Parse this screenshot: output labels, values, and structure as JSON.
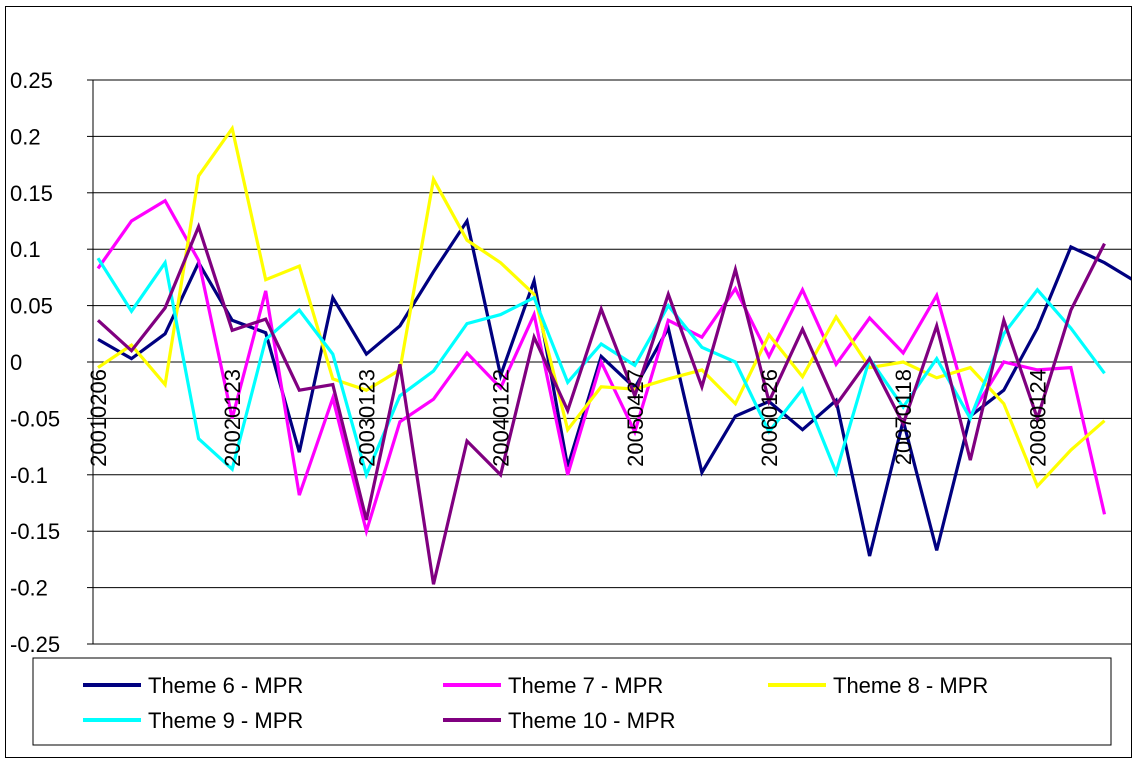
{
  "chart_data": {
    "type": "line",
    "title": "",
    "xlabel": "",
    "ylabel": "",
    "ylim": [
      -0.25,
      0.25
    ],
    "y_ticks": [
      "0.25",
      "0.2",
      "0.15",
      "0.1",
      "0.05",
      "0",
      "-0.05",
      "-0.1",
      "-0.15",
      "-0.2",
      "-0.25"
    ],
    "x_tick_labels": [
      {
        "label": "20010206",
        "index": 0
      },
      {
        "label": "20020123",
        "index": 4
      },
      {
        "label": "20030123",
        "index": 8
      },
      {
        "label": "20040122",
        "index": 12
      },
      {
        "label": "20050427",
        "index": 16
      },
      {
        "label": "20060126",
        "index": 20
      },
      {
        "label": "20070118",
        "index": 24
      },
      {
        "label": "20080124",
        "index": 28
      }
    ],
    "grid": "horizontal",
    "legend_placement": "bottom",
    "series": [
      {
        "name": "Theme 6 - MPR",
        "color": "#000080",
        "values": [
          0.02,
          0.003,
          0.025,
          0.088,
          0.037,
          0.026,
          -0.08,
          0.057,
          0.007,
          0.032,
          0.08,
          0.125,
          -0.012,
          0.072,
          -0.093,
          0.005,
          -0.023,
          0.03,
          -0.098,
          -0.048,
          -0.035,
          -0.06,
          -0.034,
          -0.172,
          -0.052,
          -0.167,
          -0.048,
          -0.025,
          0.03,
          0.102,
          0.088,
          0.07
        ]
      },
      {
        "name": "Theme 7 - MPR",
        "color": "#ff00ff",
        "values": [
          0.083,
          0.125,
          0.143,
          0.09,
          -0.05,
          0.063,
          -0.118,
          -0.032,
          -0.15,
          -0.053,
          -0.033,
          0.008,
          -0.023,
          0.042,
          -0.1,
          0.0,
          -0.062,
          0.037,
          0.022,
          0.065,
          0.005,
          0.064,
          -0.002,
          0.039,
          0.008,
          0.059,
          -0.048,
          0.0,
          -0.007,
          -0.005,
          -0.135
        ]
      },
      {
        "name": "Theme 8 - MPR",
        "color": "#ffff00",
        "values": [
          -0.005,
          0.015,
          -0.02,
          0.165,
          0.207,
          0.073,
          0.085,
          -0.015,
          -0.025,
          -0.007,
          0.162,
          0.108,
          0.088,
          0.06,
          -0.06,
          -0.022,
          -0.024,
          -0.015,
          -0.007,
          -0.037,
          0.024,
          -0.013,
          0.04,
          -0.005,
          0.0,
          -0.014,
          -0.005,
          -0.037,
          -0.11,
          -0.078,
          -0.052
        ]
      },
      {
        "name": "Theme 9 - MPR",
        "color": "#00ffff",
        "values": [
          0.092,
          0.045,
          0.088,
          -0.068,
          -0.095,
          0.02,
          0.046,
          0.007,
          -0.1,
          -0.03,
          -0.008,
          0.034,
          0.042,
          0.057,
          -0.018,
          0.016,
          -0.003,
          0.05,
          0.013,
          0.0,
          -0.062,
          -0.024,
          -0.098,
          0.003,
          -0.04,
          0.003,
          -0.05,
          0.025,
          0.064,
          0.03,
          -0.01
        ]
      },
      {
        "name": "Theme 10 - MPR",
        "color": "#800080",
        "values": [
          0.037,
          0.01,
          0.048,
          0.12,
          0.028,
          0.038,
          -0.025,
          -0.02,
          -0.14,
          -0.002,
          -0.197,
          -0.07,
          -0.1,
          0.022,
          -0.043,
          0.047,
          -0.03,
          0.06,
          -0.022,
          0.082,
          -0.035,
          0.029,
          -0.038,
          0.003,
          -0.055,
          0.032,
          -0.087,
          0.037,
          -0.05,
          0.046,
          0.105
        ]
      }
    ]
  }
}
